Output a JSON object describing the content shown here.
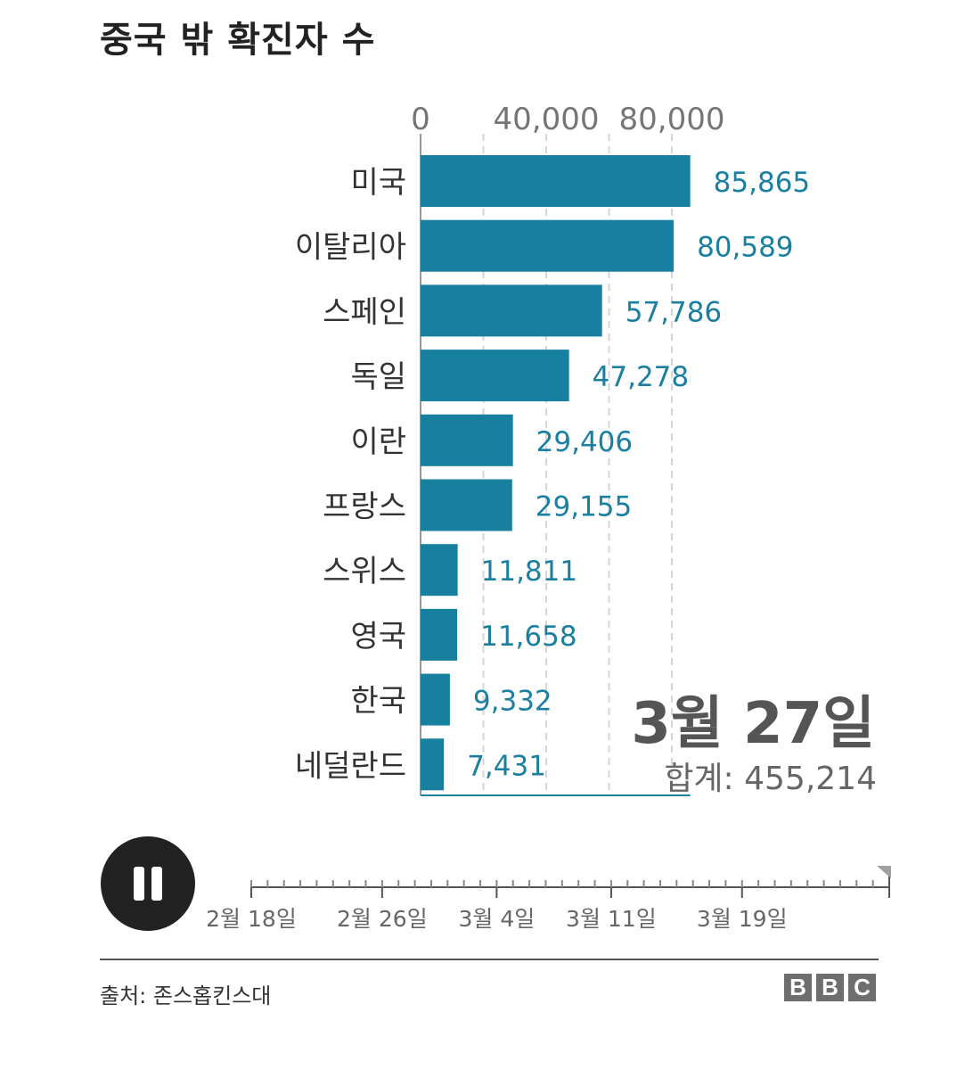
{
  "title": "중국 밖 확진자 수",
  "chart_data": {
    "type": "bar",
    "orientation": "horizontal",
    "categories": [
      "미국",
      "이탈리아",
      "스페인",
      "독일",
      "이란",
      "프랑스",
      "스위스",
      "영국",
      "한국",
      "네덜란드"
    ],
    "values": [
      85865,
      80589,
      57786,
      47278,
      29406,
      29155,
      11811,
      11658,
      9332,
      7431
    ],
    "value_labels": [
      "85,865",
      "80,589",
      "57,786",
      "47,278",
      "29,406",
      "29,155",
      "11,811",
      "11,658",
      "9,332",
      "7,431"
    ],
    "xlim": [
      0,
      86000
    ],
    "x_ticks": [
      0,
      40000,
      80000
    ],
    "x_tick_labels": [
      "0",
      "40,000",
      "80,000"
    ],
    "grid": "dashed vertical every 20,000",
    "bar_color": "#17809f",
    "label_color": "#1a7fa0",
    "date_label": "3월 27일",
    "total_label": "합계: 455,214"
  },
  "timeline": {
    "labels": [
      "2월 18일",
      "2월 26일",
      "3월 4일",
      "3월 11일",
      "3월 19일"
    ],
    "progress": 1.0
  },
  "source": "출처: 존스홉킨스대",
  "brand": [
    "B",
    "B",
    "C"
  ]
}
